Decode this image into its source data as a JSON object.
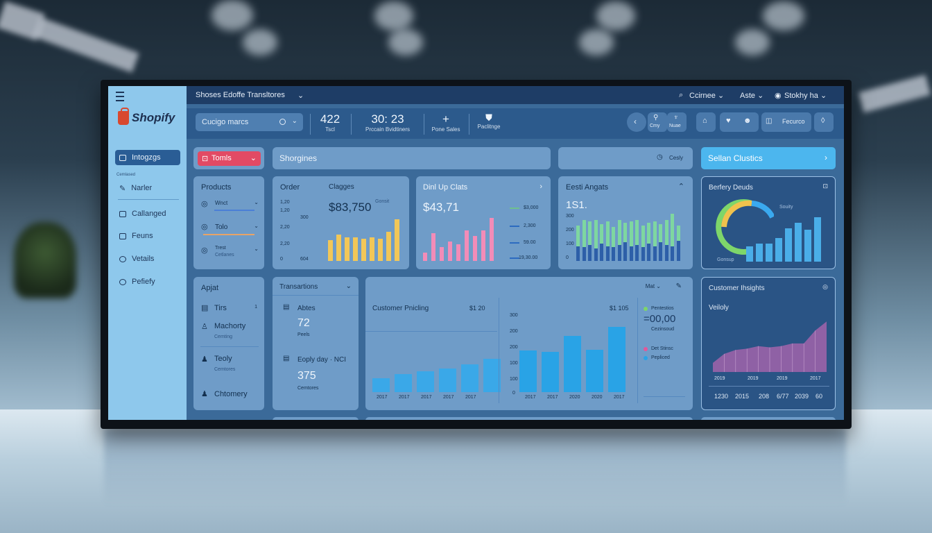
{
  "topbar": {
    "title": "Shoses  Edoffe Transltores",
    "chevron": "⌄",
    "right_items": [
      "Ccirnee ⌄",
      "Aste ⌄",
      "Stokhy ha ⌄"
    ]
  },
  "sidebar": {
    "logo": "Shopify",
    "sub_label": "Cemlased",
    "items": [
      {
        "label": "Intogzgs",
        "icon": "dashboard-icon"
      },
      {
        "label": "Narler",
        "icon": "pencil-icon"
      },
      {
        "label": "Callanged",
        "icon": "folder-icon"
      },
      {
        "label": "Feuns",
        "icon": "list-icon"
      },
      {
        "label": "Vetails",
        "icon": "settings-icon"
      },
      {
        "label": "Pefiefy",
        "icon": "gear-icon"
      }
    ]
  },
  "header": {
    "search_placeholder": "Cucigo marcs",
    "stats": [
      {
        "value": "422",
        "label": "Tscl"
      },
      {
        "value": "30: 23",
        "label": "Prccain  Bvidtiners"
      },
      {
        "value": "+",
        "label": "Pone Sales"
      },
      {
        "value": "",
        "label": "Paclitnge"
      }
    ],
    "buttons": [
      "Cmy",
      "Nuae",
      "Fecurco"
    ]
  },
  "row1": {
    "red_pill": "Tomls",
    "search_bar": "Shorgines",
    "copy_btn": "Cesly",
    "cyan_btn": "Sellan Clustics"
  },
  "products": {
    "title": "Products",
    "items": [
      "Wnct",
      "Tolo",
      "Trest"
    ],
    "subs": [
      "",
      "",
      "Cetlanes"
    ]
  },
  "order": {
    "title": "Order",
    "subtitle": "Clagges",
    "value": "$83,750",
    "side_label": "Gonsit",
    "yaxis": [
      "1,20",
      "1,20",
      "300",
      "2,20",
      "2,20",
      "0"
    ],
    "yaxis2": "604",
    "chart_data": {
      "type": "bar",
      "categories": [
        "1",
        "2",
        "3",
        "4",
        "5",
        "6",
        "7",
        "8",
        "9"
      ],
      "values": [
        30,
        38,
        34,
        34,
        32,
        34,
        32,
        42,
        60
      ],
      "ylim": [
        0,
        64
      ]
    }
  },
  "dini": {
    "title": "Dinl Up Clats",
    "value": "$43,71",
    "legend": [
      "$3,000",
      "2,300",
      "59.00",
      "19,30.00"
    ],
    "chart_data": {
      "type": "bar",
      "categories": [
        "1",
        "2",
        "3",
        "4",
        "5",
        "6",
        "7",
        "8",
        "9"
      ],
      "values": [
        12,
        40,
        20,
        28,
        24,
        44,
        36,
        44,
        62
      ],
      "ylim": [
        0,
        64
      ]
    }
  },
  "eesti": {
    "title": "Eesti Angats",
    "value": "1S1.",
    "yaxis": [
      "300",
      "200",
      "100",
      "0"
    ],
    "chart_data": {
      "type": "bar",
      "categories": [
        "1",
        "2",
        "3",
        "4",
        "5",
        "6",
        "7",
        "8",
        "9",
        "10",
        "11",
        "12",
        "13",
        "14",
        "15",
        "16",
        "17",
        "18"
      ],
      "series": [
        {
          "values": [
            22,
            20,
            24,
            18,
            26,
            22,
            20,
            24,
            28,
            22,
            24,
            20,
            26,
            22,
            28,
            24,
            22,
            30
          ]
        },
        {
          "values": [
            52,
            60,
            58,
            60,
            54,
            58,
            50,
            60,
            56,
            58,
            60,
            52,
            56,
            58,
            54,
            60,
            70,
            52
          ]
        }
      ],
      "ylim": [
        0,
        80
      ]
    }
  },
  "berfery": {
    "title": "Berfery Deuds",
    "side_label": "Souity",
    "foot_label": "Gonsup",
    "chart_data": {
      "type": "bar",
      "categories": [
        "1",
        "2",
        "3",
        "4",
        "5",
        "6",
        "7",
        "8"
      ],
      "values": [
        22,
        26,
        26,
        34,
        48,
        56,
        46,
        64
      ],
      "ylim": [
        0,
        70
      ]
    },
    "donut": {
      "green": 0.38,
      "yellow": 0.18,
      "blue": 0.22
    }
  },
  "apjat": {
    "title": "Apjat",
    "items": [
      {
        "label": "Tirs",
        "sub": "",
        "badge": "1"
      },
      {
        "label": "Machorty",
        "sub": "Cemting",
        "badge": ""
      },
      {
        "label": "Teoly",
        "sub": "Cemtores",
        "badge": ""
      },
      {
        "label": "Chtomery",
        "sub": "",
        "badge": ""
      }
    ]
  },
  "transactions": {
    "title": "Transartions",
    "a_label": "Abtes",
    "a_value": "72",
    "a_sub": "Peels",
    "b_label": "Eoply day · NCI",
    "b_value": "375",
    "b_sub": "Cemtores"
  },
  "customer_pricing": {
    "title": "Customer Pnicling",
    "value_left": "$1 20",
    "value_right": "$1 105",
    "toolbar": "Mat ⌄",
    "big_value": "=00,00",
    "legend": [
      "Pentestios",
      "Cezinsoud",
      "Det Stinsc",
      "Pepliced"
    ],
    "x_left": [
      "2017",
      "2017",
      "2017",
      "2017",
      "2017"
    ],
    "x_right": [
      "2017",
      "2017",
      "2020",
      "2020",
      "2017"
    ],
    "yaxis": [
      "300",
      "200",
      "200",
      "100",
      "100",
      "0"
    ],
    "chart_data": [
      {
        "type": "bar",
        "categories": [
          "1",
          "2",
          "3",
          "4",
          "5",
          "6"
        ],
        "values": [
          30,
          40,
          46,
          52,
          60,
          72
        ],
        "ylim": [
          0,
          130
        ]
      },
      {
        "type": "bar",
        "categories": [
          "1",
          "2",
          "3",
          "4",
          "5"
        ],
        "values": [
          62,
          60,
          84,
          63,
          98
        ],
        "ylim": [
          0,
          110
        ]
      }
    ]
  },
  "customer_insights": {
    "title": "Customer Ihsights",
    "subtitle": "Veiloly",
    "x_labels": [
      "2019",
      "2019",
      "2019",
      "2017"
    ],
    "footer": [
      "1230",
      "2015",
      "208",
      "6/77",
      "2039",
      "60"
    ],
    "chart_data": {
      "type": "area",
      "x": [
        1,
        2,
        3,
        4,
        5,
        6,
        7,
        8,
        9,
        10,
        11
      ],
      "values": [
        14,
        28,
        34,
        36,
        40,
        38,
        40,
        44,
        44,
        64,
        78
      ],
      "ylim": [
        0,
        90
      ]
    }
  },
  "colors": {
    "accent_red": "#e24a64",
    "accent_cyan": "#4cb6ee",
    "bar_yellow": "#f2c758",
    "bar_pink": "#f28cb8",
    "bar_green": "#7ed7a0",
    "bar_blue": "#29a3e6",
    "area_purple": "#9a63a8"
  }
}
